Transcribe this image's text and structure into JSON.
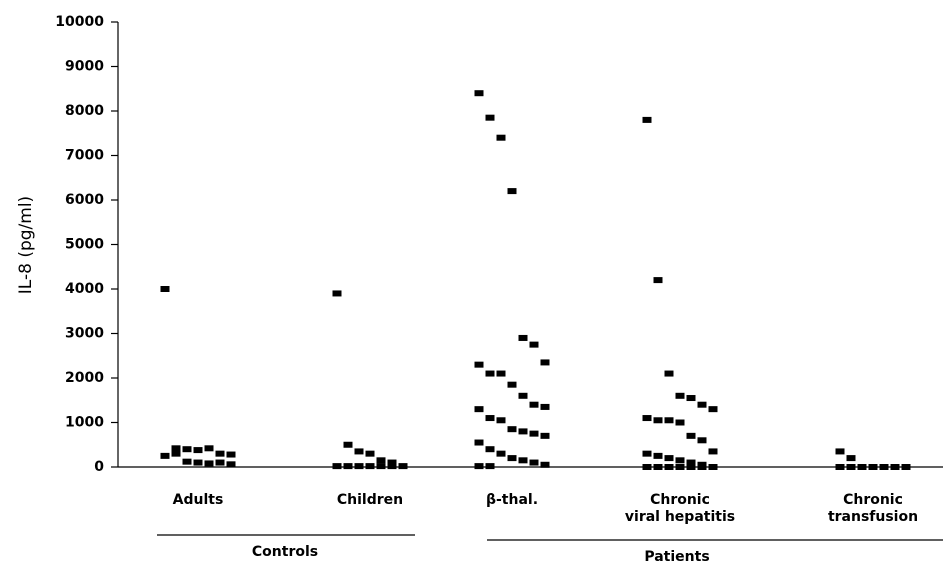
{
  "chart_data": {
    "type": "strip",
    "y_label": "IL-8 (pg/ml)",
    "categories": [
      [
        "Adults"
      ],
      [
        "Children"
      ],
      [
        "β-thal."
      ],
      [
        "Chronic",
        "viral hepatitis"
      ],
      [
        "Chronic",
        "transfusion"
      ]
    ],
    "groups": [
      "Controls",
      "Patients"
    ],
    "series": [
      {
        "values": [
          4000,
          420,
          400,
          380,
          420,
          300,
          280,
          250,
          300,
          120,
          100,
          80,
          100,
          60
        ]
      },
      {
        "values": [
          3900,
          500,
          350,
          300,
          150,
          100,
          20,
          20,
          20,
          20,
          20,
          20,
          20
        ]
      },
      {
        "values": [
          8400,
          7850,
          7400,
          6200,
          2900,
          2750,
          2350,
          2300,
          2100,
          2100,
          1850,
          1600,
          1400,
          1350,
          1300,
          1100,
          1050,
          850,
          800,
          750,
          700,
          550,
          400,
          300,
          200,
          150,
          100,
          50,
          20,
          20
        ]
      },
      {
        "values": [
          7800,
          4200,
          2100,
          1600,
          1550,
          1400,
          1300,
          1100,
          1050,
          1050,
          1000,
          700,
          600,
          350,
          300,
          250,
          200,
          150,
          100,
          50,
          0,
          0,
          0,
          0,
          0,
          0,
          0,
          0,
          0,
          0,
          0,
          0,
          0,
          0
        ]
      },
      {
        "values": [
          350,
          200,
          0,
          0,
          0,
          0,
          0,
          0,
          0,
          0,
          0,
          0,
          0,
          0
        ]
      }
    ],
    "color": "#000000",
    "ylim": [
      0,
      10000
    ],
    "yticks": [
      0,
      1000,
      2000,
      3000,
      4000,
      5000,
      6000,
      7000,
      8000,
      9000,
      10000
    ]
  }
}
